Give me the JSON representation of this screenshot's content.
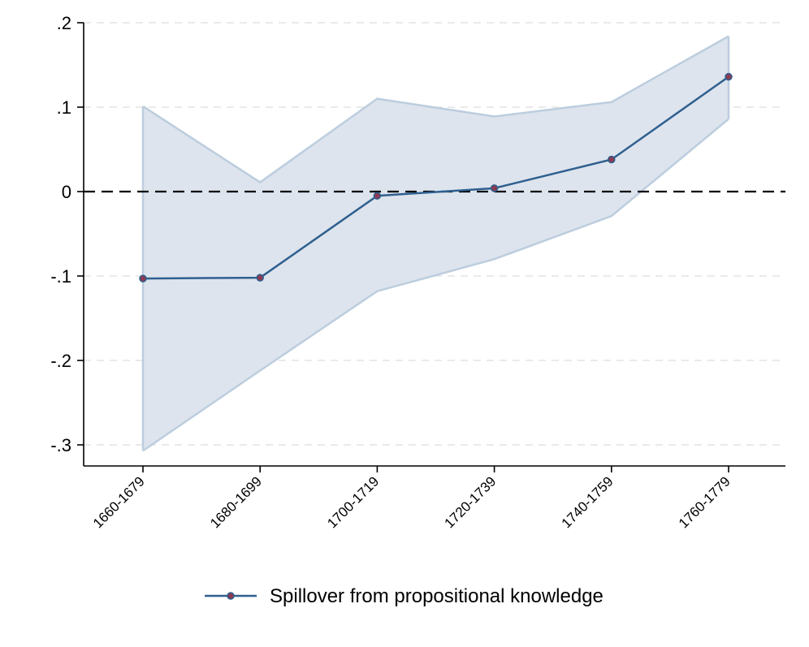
{
  "chart_data": {
    "type": "line",
    "title": "",
    "xlabel": "",
    "ylabel": "",
    "categories": [
      "1660-1679",
      "1680-1699",
      "1700-1719",
      "1720-1739",
      "1740-1759",
      "1760-1779"
    ],
    "series": [
      {
        "name": "Spillover from propositional knowledge",
        "values": [
          -0.103,
          -0.102,
          -0.005,
          0.004,
          0.038,
          0.136
        ],
        "ci_lower": [
          -0.307,
          -0.212,
          -0.118,
          -0.08,
          -0.029,
          0.086
        ],
        "ci_upper": [
          0.101,
          0.011,
          0.11,
          0.089,
          0.106,
          0.184
        ],
        "color": "#2f5f8f",
        "marker_color": "#8b3a52"
      }
    ],
    "ci_band_color": "#dde4ed",
    "ci_edge_color": "#bccdde",
    "ylim": [
      -0.325,
      0.2
    ],
    "yticks": [
      {
        "value": 0.2,
        "label": ".2"
      },
      {
        "value": 0.1,
        "label": ".1"
      },
      {
        "value": 0.0,
        "label": "0"
      },
      {
        "value": -0.1,
        "label": "-.1"
      },
      {
        "value": -0.2,
        "label": "-.2"
      },
      {
        "value": -0.3,
        "label": "-.3"
      }
    ],
    "reference_line": {
      "value": 0,
      "style": "dashed",
      "color": "#000000"
    },
    "grid": true,
    "legend_position": "bottom"
  }
}
